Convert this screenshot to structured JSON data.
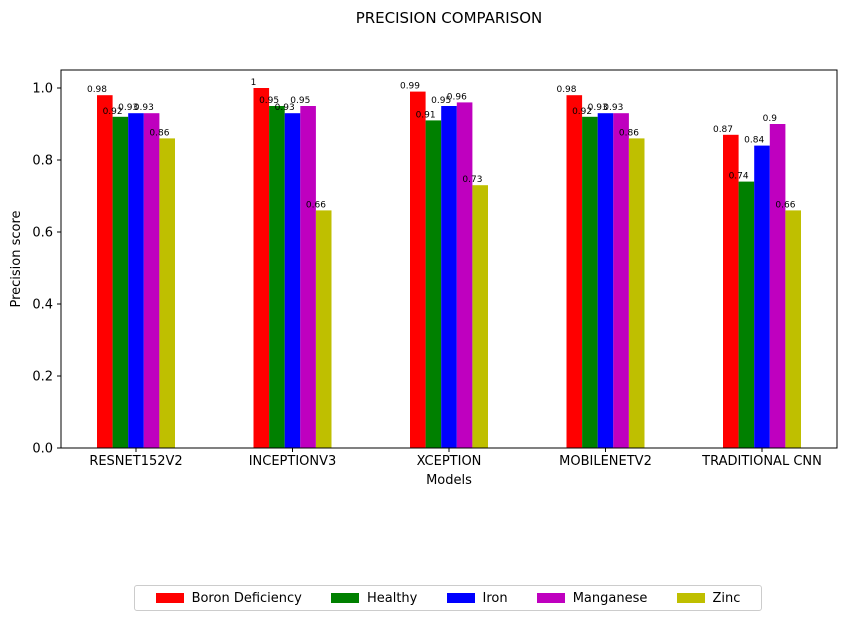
{
  "chart_data": {
    "type": "bar",
    "title": "PRECISION COMPARISON",
    "xlabel": "Models",
    "ylabel": "Precision score",
    "categories": [
      "RESNET152V2",
      "INCEPTIONV3",
      "XCEPTION",
      "MOBILENETV2",
      "TRADITIONAL CNN"
    ],
    "ylim": [
      0,
      1.05
    ],
    "yticks": [
      "0.0",
      "0.2",
      "0.4",
      "0.6",
      "0.8",
      "1.0"
    ],
    "grid": false,
    "legend_position": "bottom-center",
    "series": [
      {
        "name": "Boron Deficiency",
        "color": "#ff0000",
        "values": [
          0.98,
          1,
          0.99,
          0.98,
          0.87
        ]
      },
      {
        "name": "Healthy",
        "color": "#008000",
        "values": [
          0.92,
          0.95,
          0.91,
          0.92,
          0.74
        ]
      },
      {
        "name": "Iron",
        "color": "#0000ff",
        "values": [
          0.93,
          0.93,
          0.95,
          0.93,
          0.84
        ]
      },
      {
        "name": "Manganese",
        "color": "#bf00bf",
        "values": [
          0.93,
          0.95,
          0.96,
          0.93,
          0.9
        ]
      },
      {
        "name": "Zinc",
        "color": "#bfbf00",
        "values": [
          0.86,
          0.66,
          0.73,
          0.86,
          0.66
        ]
      }
    ]
  }
}
